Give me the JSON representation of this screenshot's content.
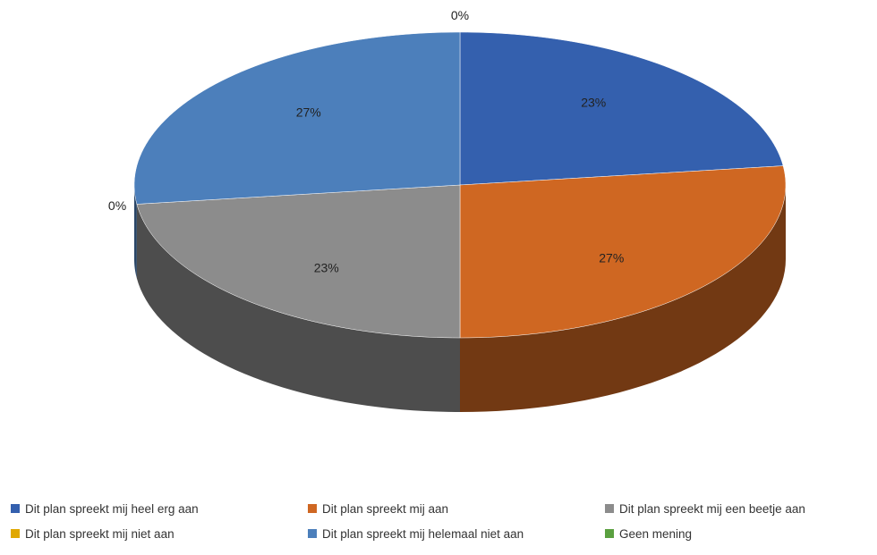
{
  "chart_data": {
    "type": "pie",
    "style": "3d",
    "title": "",
    "categories": [
      "Dit plan spreekt mij heel erg aan",
      "Dit plan spreekt mij aan",
      "Dit plan spreekt mij een beetje aan",
      "Dit plan spreekt mij niet aan",
      "Dit plan spreekt mij helemaal niet aan",
      "Geen mening"
    ],
    "values": [
      23,
      27,
      23,
      0,
      27,
      0
    ],
    "labels": [
      "23%",
      "27%",
      "23%",
      "0%",
      "27%",
      "0%"
    ],
    "colors": [
      "#3460AE",
      "#CF6722",
      "#8C8C8C",
      "#E0A800",
      "#4C7FBB",
      "#5AA040"
    ],
    "legend_position": "bottom"
  }
}
